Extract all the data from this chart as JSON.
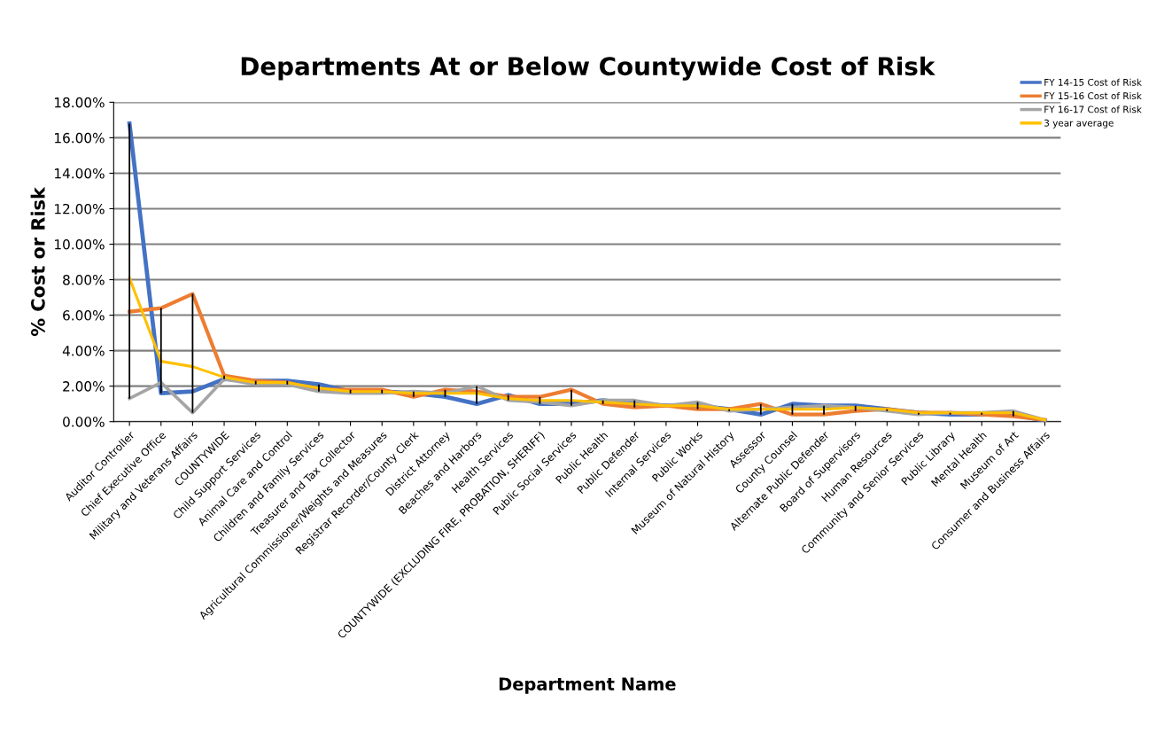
{
  "chart_data": {
    "type": "line",
    "title": "Departments At or Below Countywide Cost of Risk",
    "xlabel": "Department Name",
    "ylabel": "% Cost or Risk",
    "categories": [
      "Auditor Controller",
      "Chief Executive Office",
      "Military and Veterans Affairs",
      "COUNTYWIDE",
      "Child Support Services",
      "Animal Care and Control",
      "Children and Family Services",
      "Treasurer and Tax Collector",
      "Agricultural Commissioner/Weights and Measures",
      "Registrar Recorder/County Clerk",
      "District Attorney",
      "Beaches and Harbors",
      "Health Services",
      "COUNTYWIDE (EXCLUDING FIRE, PROBATION, SHERIFF)",
      "Public Social Services",
      "Public Health",
      "Public Defender",
      "Internal Services",
      "Public Works",
      "Museum of Natural History",
      "Assessor",
      "County Counsel",
      "Alternate Public Defender",
      "Board of Supervisors",
      "Human Resources",
      "Community and Senior Services",
      "Public Library",
      "Mental Health",
      "Museum of Art",
      "Consumer and Business Affairs"
    ],
    "series": [
      {
        "name": "FY 14-15 Cost of Risk",
        "color": "#4472c4",
        "values": [
          16.8,
          1.6,
          1.7,
          2.4,
          2.3,
          2.3,
          2.1,
          1.7,
          1.7,
          1.6,
          1.4,
          1.0,
          1.5,
          1.0,
          1.0,
          1.2,
          1.0,
          0.9,
          0.9,
          0.7,
          0.4,
          1.0,
          0.9,
          0.9,
          0.7,
          0.5,
          0.4,
          0.4,
          0.4,
          0.05
        ]
      },
      {
        "name": "FY 15-16 Cost of Risk",
        "color": "#ed7d31",
        "values": [
          6.2,
          6.4,
          7.2,
          2.6,
          2.3,
          2.2,
          1.8,
          1.8,
          1.8,
          1.4,
          1.8,
          1.7,
          1.4,
          1.4,
          1.8,
          1.0,
          0.8,
          0.9,
          0.7,
          0.7,
          1.0,
          0.4,
          0.4,
          0.6,
          0.7,
          0.5,
          0.5,
          0.4,
          0.3,
          0.1
        ]
      },
      {
        "name": "FY 16-17 Cost of Risk",
        "color": "#a5a5a5",
        "values": [
          1.3,
          2.2,
          0.5,
          2.4,
          2.1,
          2.1,
          1.7,
          1.6,
          1.6,
          1.7,
          1.6,
          2.0,
          1.2,
          1.1,
          0.9,
          1.2,
          1.2,
          0.9,
          1.1,
          0.6,
          0.7,
          0.8,
          0.9,
          0.8,
          0.6,
          0.4,
          0.5,
          0.5,
          0.6,
          0.1
        ]
      },
      {
        "name": "3 year average",
        "color": "#ffc000",
        "values": [
          8.1,
          3.4,
          3.1,
          2.5,
          2.2,
          2.2,
          1.9,
          1.7,
          1.7,
          1.6,
          1.6,
          1.6,
          1.3,
          1.2,
          1.2,
          1.1,
          1.0,
          0.9,
          0.9,
          0.7,
          0.7,
          0.7,
          0.7,
          0.8,
          0.7,
          0.5,
          0.5,
          0.5,
          0.5,
          0.1
        ],
        "errors": [
          [
            1.3,
            16.8
          ],
          [
            1.6,
            6.4
          ],
          [
            0.5,
            7.2
          ],
          [
            2.4,
            2.6
          ],
          [
            2.1,
            2.3
          ],
          [
            2.1,
            2.3
          ],
          [
            1.7,
            2.1
          ],
          [
            1.6,
            1.8
          ],
          [
            1.6,
            1.8
          ],
          [
            1.4,
            1.7
          ],
          [
            1.4,
            1.8
          ],
          [
            1.0,
            2.0
          ],
          [
            1.2,
            1.5
          ],
          [
            1.0,
            1.4
          ],
          [
            0.9,
            1.8
          ],
          [
            1.0,
            1.2
          ],
          [
            0.8,
            1.2
          ],
          null,
          [
            0.7,
            1.1
          ],
          [
            0.6,
            0.7
          ],
          [
            0.4,
            1.0
          ],
          [
            0.4,
            1.0
          ],
          [
            0.4,
            0.9
          ],
          [
            0.6,
            0.9
          ],
          [
            0.6,
            0.7
          ],
          [
            0.4,
            0.5
          ],
          [
            0.4,
            0.5
          ],
          [
            0.4,
            0.5
          ],
          [
            0.3,
            0.6
          ],
          null
        ]
      }
    ],
    "ylim": [
      0,
      18
    ],
    "yticks": [
      {
        "value": 0,
        "label": "0.00%"
      },
      {
        "value": 2,
        "label": "2.00%"
      },
      {
        "value": 4,
        "label": "4.00%"
      },
      {
        "value": 6,
        "label": "6.00%"
      },
      {
        "value": 8,
        "label": "8.00%"
      },
      {
        "value": 10,
        "label": "10.00%"
      },
      {
        "value": 12,
        "label": "12.00%"
      },
      {
        "value": 14,
        "label": "14.00%"
      },
      {
        "value": 16,
        "label": "16.00%"
      },
      {
        "value": 18,
        "label": "18.00%"
      }
    ],
    "grid": "y",
    "legend": "top right",
    "marker": "none",
    "line_style": "solid"
  }
}
